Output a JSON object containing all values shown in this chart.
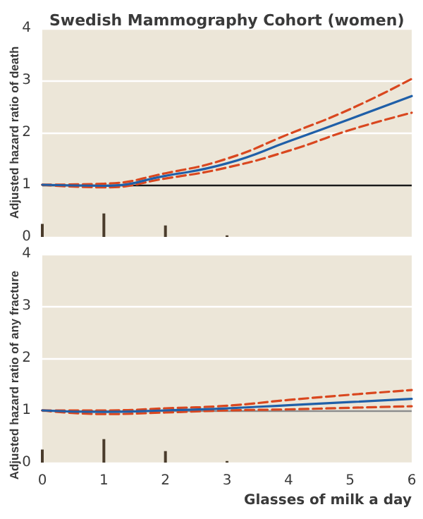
{
  "chart_data": [
    {
      "type": "line",
      "title": "Swedish Mammography Cohort (women)",
      "ylabel": "Adjusted hazard ratio of death",
      "x": [
        0,
        1,
        2,
        3,
        4,
        5,
        6
      ],
      "xlim": [
        0,
        6
      ],
      "xticks": [
        0,
        1,
        2,
        3,
        4,
        5,
        6
      ],
      "ylim": [
        0,
        4
      ],
      "yticks": [
        0,
        1,
        2,
        3,
        4
      ],
      "grid": "y",
      "tick_labels": "y",
      "marker": "none",
      "ref_lines": [
        {
          "axis": "y",
          "value": 1,
          "color": "#1a1a1a"
        }
      ],
      "series": [
        {
          "color": "#1f5fa8",
          "line_style": "solid",
          "values": [
            1,
            0.98,
            1.17,
            1.41,
            1.83,
            2.26,
            2.7
          ]
        },
        {
          "color": "#d9471f",
          "line_style": "dashed",
          "values": [
            1,
            1.02,
            1.22,
            1.5,
            1.97,
            2.45,
            3.03
          ]
        },
        {
          "color": "#d9471f",
          "line_style": "dashed",
          "values": [
            1,
            0.95,
            1.12,
            1.33,
            1.65,
            2.05,
            2.38
          ]
        },
        {
          "type": "bar",
          "color": "#4a3c2c",
          "x": [
            0,
            1,
            2,
            3
          ],
          "values": [
            0.25,
            0.45,
            0.22,
            0.03
          ]
        }
      ]
    },
    {
      "type": "line",
      "xlabel": "Glasses of milk a day",
      "ylabel": "Adjusted hazard ratio of any fracture",
      "x": [
        0,
        1,
        2,
        3,
        4,
        5,
        6
      ],
      "xlim": [
        0,
        6
      ],
      "xticks": [
        0,
        1,
        2,
        3,
        4,
        5,
        6
      ],
      "ylim": [
        0,
        4
      ],
      "yticks": [
        0,
        1,
        2,
        3,
        4
      ],
      "grid": "y",
      "marker": "none",
      "ref_lines": [
        {
          "axis": "y",
          "value": 1,
          "color": "#8c8c8c"
        }
      ],
      "series": [
        {
          "color": "#1f5fa8",
          "line_style": "solid",
          "values": [
            1,
            0.97,
            1.0,
            1.04,
            1.1,
            1.16,
            1.22
          ]
        },
        {
          "color": "#d9471f",
          "line_style": "dashed",
          "values": [
            1,
            1.0,
            1.04,
            1.09,
            1.2,
            1.3,
            1.39
          ]
        },
        {
          "color": "#d9471f",
          "line_style": "dashed",
          "values": [
            1,
            0.93,
            0.96,
            1.0,
            1.02,
            1.05,
            1.08
          ]
        },
        {
          "type": "bar",
          "color": "#4a3c2c",
          "x": [
            0,
            1,
            2,
            3
          ],
          "values": [
            0.25,
            0.45,
            0.22,
            0.03
          ]
        }
      ]
    }
  ]
}
